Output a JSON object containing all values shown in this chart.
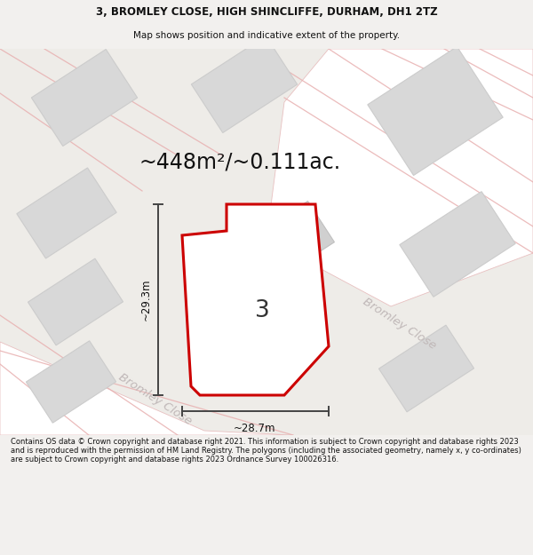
{
  "title_line1": "3, BROMLEY CLOSE, HIGH SHINCLIFFE, DURHAM, DH1 2TZ",
  "title_line2": "Map shows position and indicative extent of the property.",
  "area_text": "~448m²/~0.111ac.",
  "label_number": "3",
  "dim_height": "~29.3m",
  "dim_width": "~28.7m",
  "road_label_upper": "Bromley Close",
  "road_label_lower": "Bromley Clos",
  "footer_text": "Contains OS data © Crown copyright and database right 2021. This information is subject to Crown copyright and database rights 2023 and is reproduced with the permission of HM Land Registry. The polygons (including the associated geometry, namely x, y co-ordinates) are subject to Crown copyright and database rights 2023 Ordnance Survey 100026316.",
  "bg_color": "#f2f0ee",
  "map_bg": "#eeece8",
  "building_fill": "#d8d8d8",
  "building_edge": "#cccccc",
  "road_fill": "#ffffff",
  "road_edge": "#e8c0c0",
  "plot_fill": "#ffffff",
  "plot_edge": "#cc0000",
  "dim_color": "#444444",
  "road_text_color": "#c0b8b8",
  "title_fontsize": 8.5,
  "subtitle_fontsize": 7.5,
  "area_fontsize": 17,
  "label_fontsize": 19,
  "dim_fontsize": 8.5,
  "road_fontsize": 9.5,
  "footer_fontsize": 6.0
}
